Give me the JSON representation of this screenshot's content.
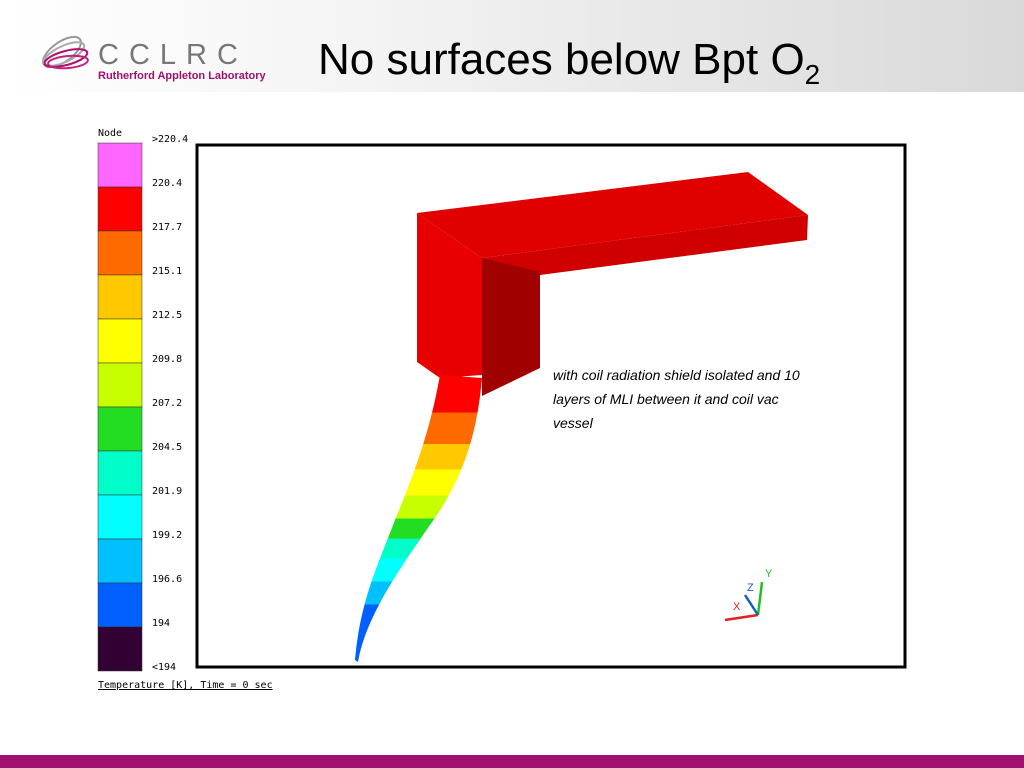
{
  "header": {
    "logo_text": "CCLRC",
    "lab_name": "Rutherford Appleton Laboratory",
    "title": "No surfaces below Bpt O",
    "title_subscript": "2"
  },
  "legend": {
    "title": "Node",
    "labels": [
      ">220.4",
      "220.4",
      "217.7",
      "215.1",
      "212.5",
      "209.8",
      "207.2",
      "204.5",
      "201.9",
      "199.2",
      "196.6",
      "194",
      "<194"
    ],
    "colors": [
      "#ff66ff",
      "#ff0000",
      "#ff6a00",
      "#ffc800",
      "#ffff00",
      "#c8ff00",
      "#22dd22",
      "#00ffc8",
      "#00ffff",
      "#00c0ff",
      "#0060ff",
      "#330033"
    ]
  },
  "plot": {
    "annotation": [
      "with coil radiation shield isolated and 10",
      "layers of MLI between it and coil vac",
      "vessel"
    ],
    "triad": {
      "x": "X",
      "y": "Y",
      "z": "Z"
    },
    "caption": "Temperature [K], Time = 0 sec"
  }
}
